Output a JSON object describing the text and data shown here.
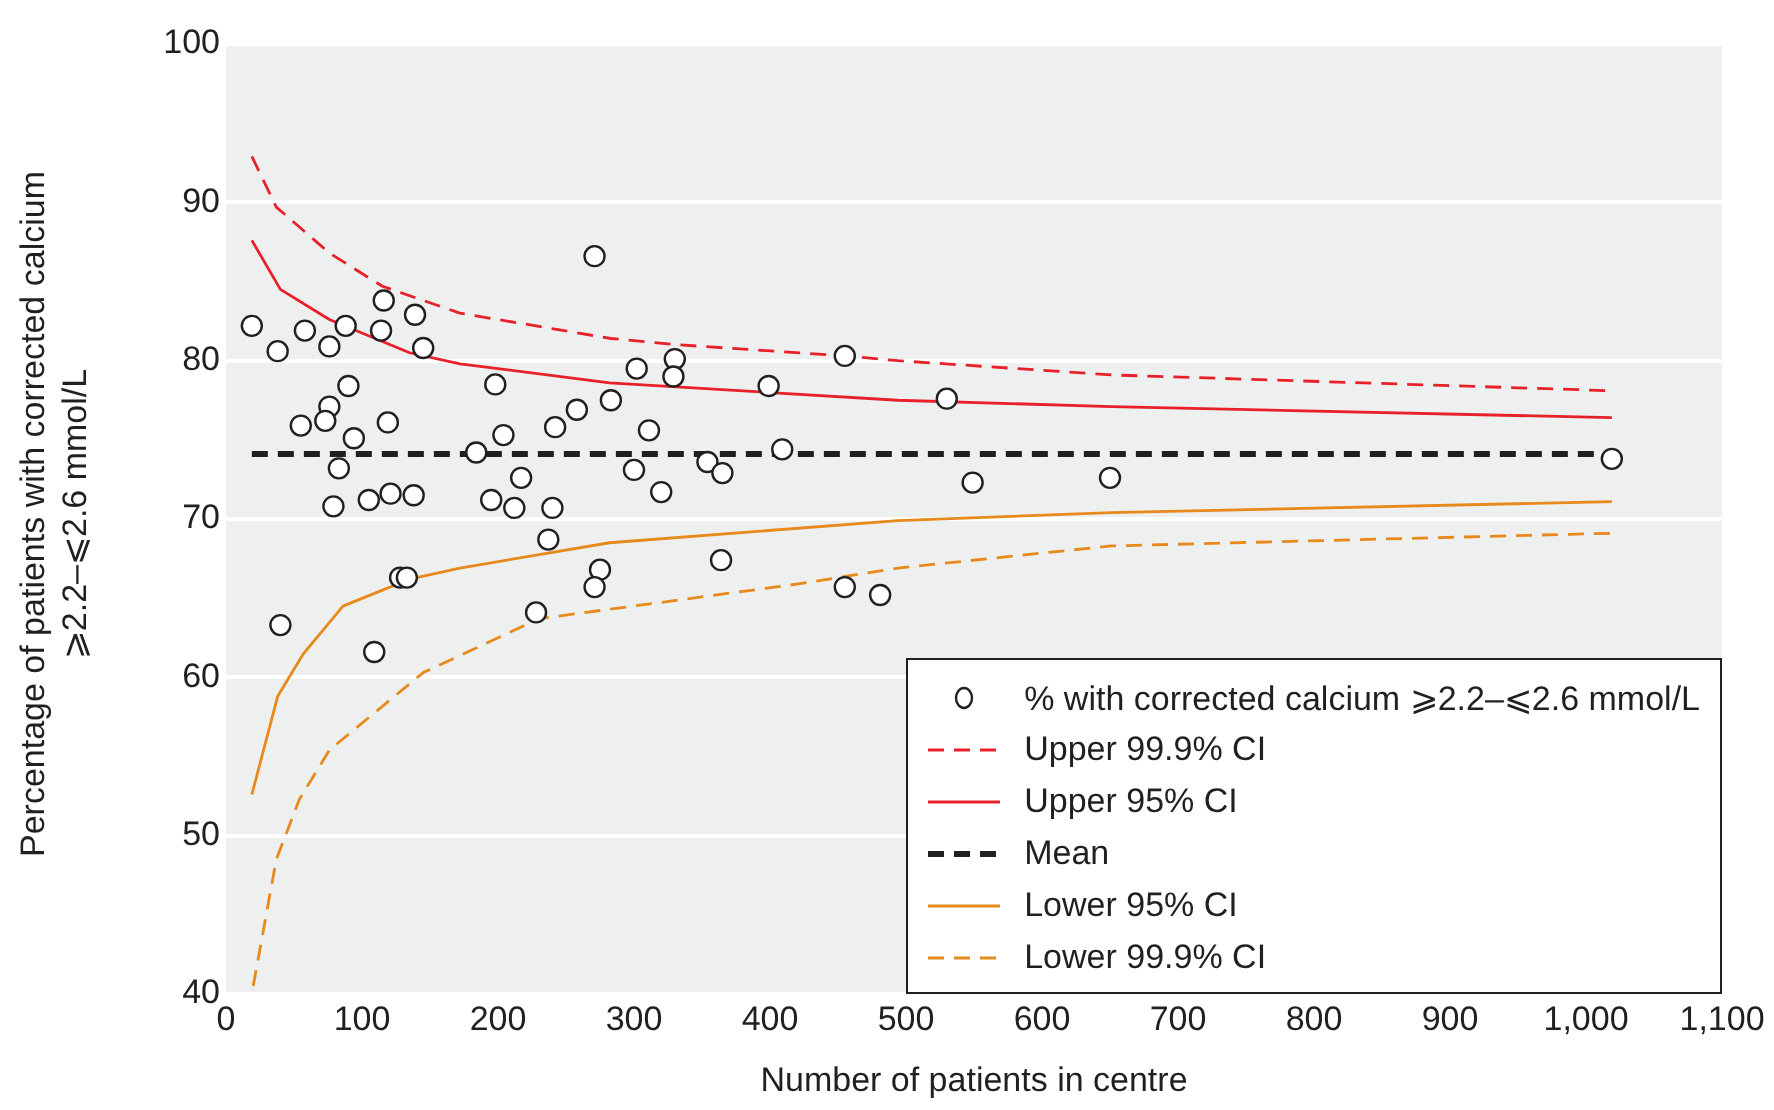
{
  "chart_data": {
    "type": "scatter",
    "xlabel": "Number of patients in centre",
    "ylabel": "Percentage of patients with corrected calcium ⩾2.2–⩽2.6 mmol/L",
    "xlim": [
      0,
      1100
    ],
    "xticks": [
      0,
      100,
      200,
      300,
      400,
      500,
      600,
      700,
      800,
      900,
      {
        "value": 1000,
        "label": "1,000"
      },
      {
        "value": 1100,
        "label": "1,100"
      }
    ],
    "ylim": [
      40,
      100
    ],
    "yticks": [
      40,
      50,
      60,
      70,
      80,
      90,
      100
    ],
    "grid": "y",
    "legend": "bottom right",
    "series": [
      {
        "name": "% with corrected calcium ⩾2.2–⩽2.6 mmol/L",
        "marker": "circle",
        "color": "#231f20",
        "x": [
          19,
          38,
          58,
          76,
          88,
          116,
          114,
          139,
          145,
          271,
          90,
          76,
          55,
          73,
          94,
          119,
          83,
          79,
          105,
          121,
          138,
          198,
          204,
          184,
          217,
          195,
          212,
          240,
          242,
          258,
          283,
          237,
          275,
          271,
          228,
          128,
          133,
          40,
          109,
          302,
          330,
          329,
          399,
          455,
          311,
          409,
          300,
          354,
          365,
          320,
          364,
          455,
          481,
          530,
          549,
          650,
          1019
        ],
        "values": [
          82.2,
          80.6,
          81.9,
          80.9,
          82.2,
          83.8,
          81.9,
          82.9,
          80.8,
          86.6,
          78.4,
          77.1,
          75.9,
          76.2,
          75.1,
          76.1,
          73.2,
          70.8,
          71.2,
          71.6,
          71.5,
          78.5,
          75.3,
          74.2,
          72.6,
          71.2,
          70.7,
          70.7,
          75.8,
          76.9,
          77.5,
          68.7,
          66.8,
          65.7,
          64.1,
          66.3,
          66.3,
          63.3,
          61.6,
          79.5,
          80.1,
          79.0,
          78.4,
          80.3,
          75.6,
          74.4,
          73.1,
          73.6,
          72.9,
          71.7,
          67.4,
          65.7,
          65.2,
          77.6,
          72.3,
          72.6,
          73.8
        ]
      },
      {
        "name": "Upper 99.9% CI",
        "type": "line",
        "line_style": "dashed",
        "color": "#e8202a",
        "x": [
          19,
          37,
          76,
          115,
          172,
          283,
          333,
          455,
          494,
          651,
          1019
        ],
        "values": [
          92.9,
          89.7,
          86.8,
          84.7,
          83.0,
          81.4,
          81.0,
          80.3,
          80.0,
          79.1,
          78.1
        ]
      },
      {
        "name": "Upper 95% CI",
        "type": "line",
        "line_style": "solid",
        "color": "#e8202a",
        "x": [
          19,
          40,
          76,
          135,
          172,
          282,
          494,
          651,
          1019
        ],
        "values": [
          87.6,
          84.5,
          82.6,
          80.5,
          79.8,
          78.6,
          77.5,
          77.1,
          76.4
        ]
      },
      {
        "name": "Mean",
        "type": "line",
        "line_style": "dashed",
        "color": "#231f20",
        "x": [
          19,
          1019
        ],
        "values": [
          74.1,
          74.1
        ]
      },
      {
        "name": "Lower 95% CI",
        "type": "line",
        "line_style": "solid",
        "color": "#e8891c",
        "x": [
          19,
          38,
          57,
          86,
          135,
          172,
          282,
          494,
          651,
          1019
        ],
        "values": [
          52.6,
          58.8,
          61.5,
          64.5,
          66.2,
          66.9,
          68.5,
          69.9,
          70.4,
          71.1
        ]
      },
      {
        "name": "Lower 99.9% CI",
        "type": "line",
        "line_style": "dashed",
        "color": "#e8891c",
        "x": [
          20,
          37,
          54,
          76,
          145,
          230,
          421,
          494,
          651,
          1019
        ],
        "values": [
          40.5,
          48.5,
          52.3,
          55.4,
          60.3,
          63.7,
          65.9,
          66.9,
          68.3,
          69.1
        ]
      }
    ]
  }
}
